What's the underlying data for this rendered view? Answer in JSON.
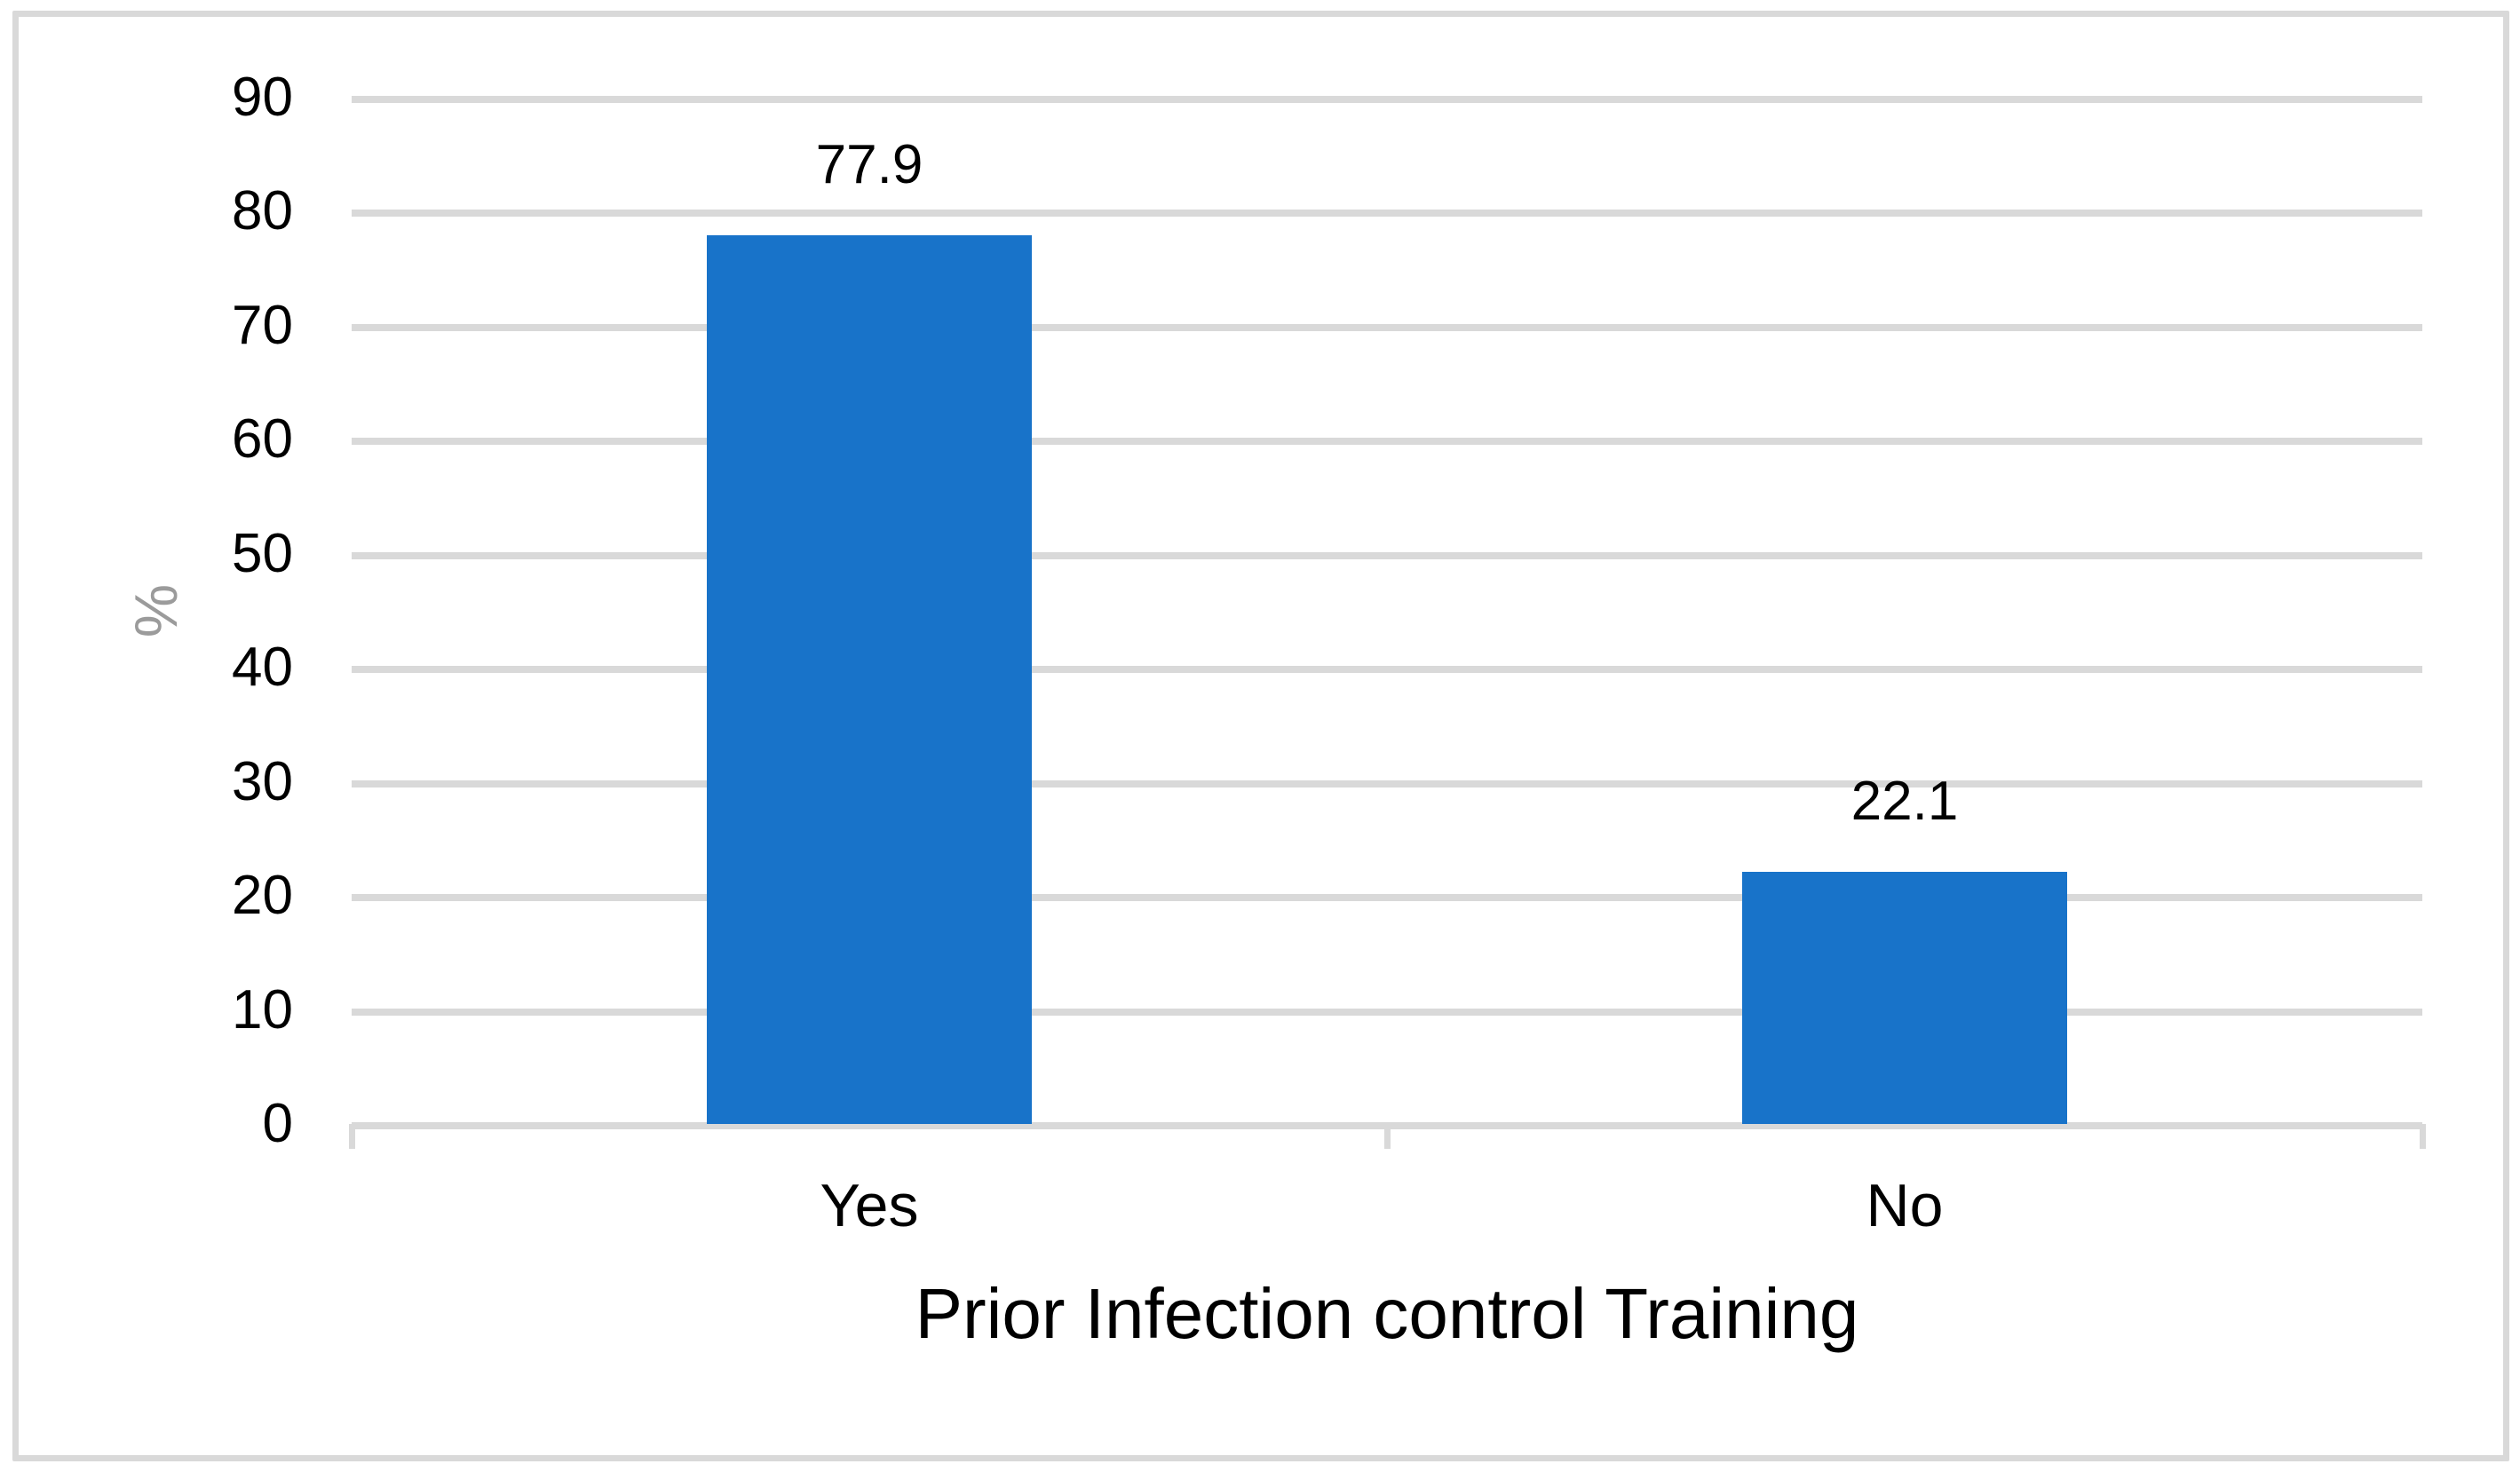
{
  "figure": {
    "background_color": "#ffffff",
    "border_color": "#d9d9d9"
  },
  "chart_data": {
    "type": "bar",
    "title": "",
    "xlabel": "Prior Infection control Training",
    "ylabel": "%",
    "categories": [
      "Yes",
      "No"
    ],
    "values": [
      77.9,
      22.1
    ],
    "data_labels": [
      "77.9",
      "22.1"
    ],
    "ylim": [
      0,
      90
    ],
    "ytick_step": 10,
    "yticks": [
      0,
      10,
      20,
      30,
      40,
      50,
      60,
      70,
      80,
      90
    ],
    "grid": true,
    "legend": "none",
    "bar_color": "#1873c9",
    "gridline_color": "#d9d9d9",
    "tick_label_color": "#000000",
    "axis_title_color": "#000000",
    "ylabel_color": "#9b9b9b"
  }
}
